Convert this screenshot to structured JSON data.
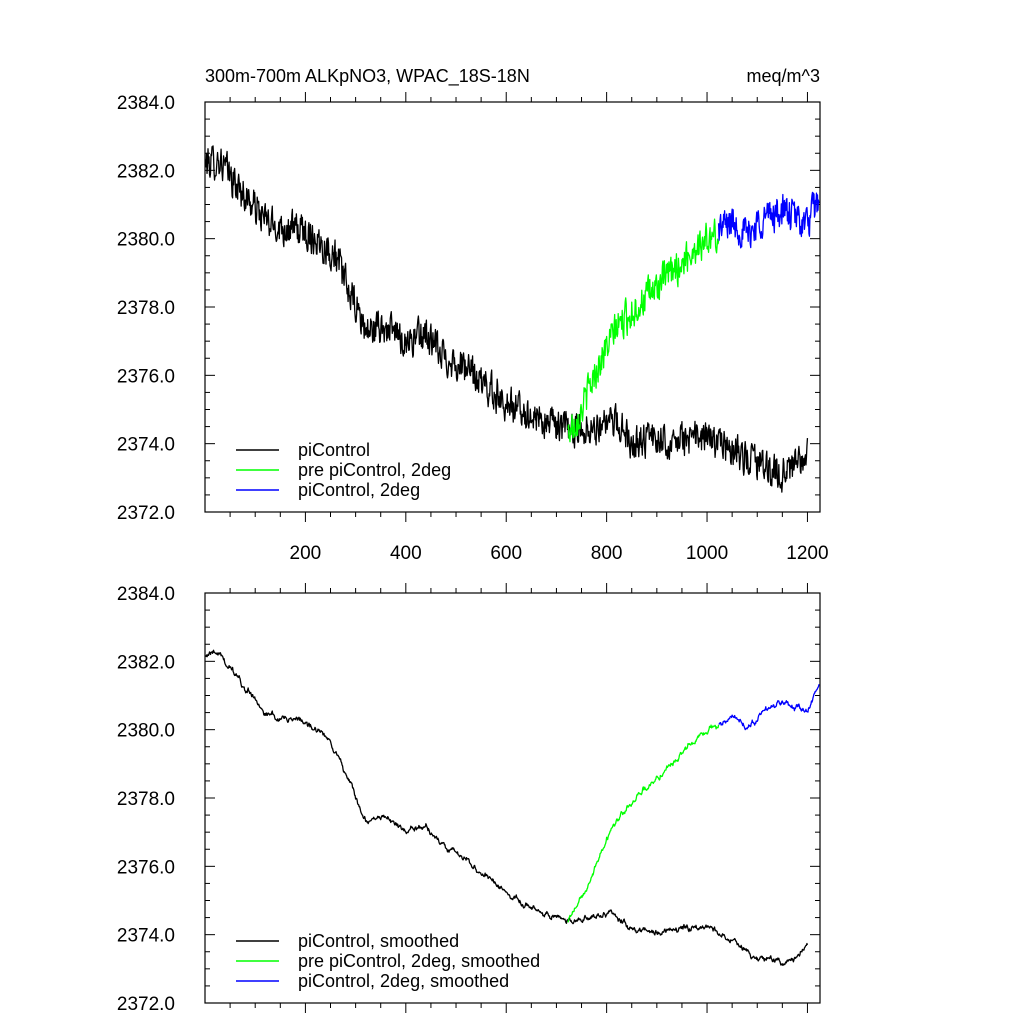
{
  "chart_data": [
    {
      "type": "line",
      "title": "300m-700m ALKpNO3, WPAC_18S-18N",
      "units": "meq/m^3",
      "xlim": [
        0,
        1225
      ],
      "ylim": [
        2372,
        2384
      ],
      "yticks": [
        "2372.0",
        "2374.0",
        "2376.0",
        "2378.0",
        "2380.0",
        "2382.0",
        "2384.0"
      ],
      "xticks": [
        "200",
        "400",
        "600",
        "800",
        "1000",
        "1200"
      ],
      "grid": false,
      "legend_position": "bottom-left",
      "series": [
        {
          "name": "piControl",
          "color": "#000000",
          "x_range": [
            1,
            1200
          ],
          "anchors": [
            [
              1,
              2382.2
            ],
            [
              30,
              2382.3
            ],
            [
              60,
              2381.6
            ],
            [
              100,
              2380.9
            ],
            [
              130,
              2380.4
            ],
            [
              170,
              2380.3
            ],
            [
              200,
              2380.2
            ],
            [
              230,
              2379.9
            ],
            [
              260,
              2379.5
            ],
            [
              280,
              2378.7
            ],
            [
              300,
              2378.0
            ],
            [
              320,
              2377.3
            ],
            [
              360,
              2377.4
            ],
            [
              400,
              2377.0
            ],
            [
              440,
              2377.2
            ],
            [
              470,
              2376.6
            ],
            [
              520,
              2376.2
            ],
            [
              550,
              2375.8
            ],
            [
              600,
              2375.2
            ],
            [
              650,
              2374.8
            ],
            [
              700,
              2374.5
            ],
            [
              730,
              2374.4
            ],
            [
              780,
              2374.5
            ],
            [
              820,
              2374.6
            ],
            [
              850,
              2374.1
            ],
            [
              900,
              2374.1
            ],
            [
              950,
              2374.1
            ],
            [
              1000,
              2374.2
            ],
            [
              1050,
              2373.8
            ],
            [
              1100,
              2373.4
            ],
            [
              1150,
              2373.1
            ],
            [
              1200,
              2373.6
            ]
          ],
          "noise": 0.45
        },
        {
          "name": "pre piControl, 2deg",
          "color": "#00ff00",
          "x_range": [
            723,
            1023
          ],
          "anchors": [
            [
              723,
              2374.3
            ],
            [
              750,
              2375.0
            ],
            [
              780,
              2376.2
            ],
            [
              820,
              2377.4
            ],
            [
              860,
              2378.0
            ],
            [
              900,
              2378.6
            ],
            [
              950,
              2379.3
            ],
            [
              980,
              2379.8
            ],
            [
              1023,
              2380.1
            ]
          ],
          "noise": 0.45
        },
        {
          "name": "piControl, 2deg",
          "color": "#0000ff",
          "x_range": [
            1023,
            1223
          ],
          "anchors": [
            [
              1023,
              2380.3
            ],
            [
              1050,
              2380.5
            ],
            [
              1080,
              2380.1
            ],
            [
              1110,
              2380.6
            ],
            [
              1150,
              2380.8
            ],
            [
              1180,
              2380.6
            ],
            [
              1200,
              2380.4
            ],
            [
              1223,
              2381.2
            ]
          ],
          "noise": 0.45
        }
      ]
    },
    {
      "type": "line",
      "title": "",
      "units": "",
      "xlim": [
        0,
        1225
      ],
      "ylim": [
        2372,
        2384
      ],
      "yticks": [
        "2372.0",
        "2374.0",
        "2376.0",
        "2378.0",
        "2380.0",
        "2382.0",
        "2384.0"
      ],
      "xticks": [],
      "grid": false,
      "legend_position": "bottom-left",
      "series": [
        {
          "name": "piControl, smoothed",
          "color": "#000000",
          "x_range": [
            1,
            1200
          ],
          "anchors": [
            [
              1,
              2382.2
            ],
            [
              30,
              2382.3
            ],
            [
              60,
              2381.6
            ],
            [
              100,
              2380.9
            ],
            [
              130,
              2380.4
            ],
            [
              170,
              2380.3
            ],
            [
              200,
              2380.2
            ],
            [
              230,
              2379.9
            ],
            [
              260,
              2379.5
            ],
            [
              280,
              2378.7
            ],
            [
              300,
              2378.0
            ],
            [
              320,
              2377.3
            ],
            [
              360,
              2377.4
            ],
            [
              400,
              2377.0
            ],
            [
              440,
              2377.2
            ],
            [
              470,
              2376.6
            ],
            [
              520,
              2376.2
            ],
            [
              550,
              2375.8
            ],
            [
              600,
              2375.2
            ],
            [
              650,
              2374.8
            ],
            [
              700,
              2374.5
            ],
            [
              730,
              2374.4
            ],
            [
              780,
              2374.5
            ],
            [
              820,
              2374.6
            ],
            [
              850,
              2374.1
            ],
            [
              900,
              2374.1
            ],
            [
              950,
              2374.1
            ],
            [
              1000,
              2374.2
            ],
            [
              1050,
              2373.8
            ],
            [
              1100,
              2373.4
            ],
            [
              1150,
              2373.1
            ],
            [
              1200,
              2373.6
            ]
          ],
          "noise": 0.14
        },
        {
          "name": "pre piControl, 2deg, smoothed",
          "color": "#00ff00",
          "x_range": [
            723,
            1023
          ],
          "anchors": [
            [
              723,
              2374.4
            ],
            [
              750,
              2375.0
            ],
            [
              780,
              2376.2
            ],
            [
              820,
              2377.4
            ],
            [
              860,
              2378.0
            ],
            [
              900,
              2378.6
            ],
            [
              950,
              2379.3
            ],
            [
              980,
              2379.8
            ],
            [
              1023,
              2380.1
            ]
          ],
          "noise": 0.14
        },
        {
          "name": "piControl, 2deg, smoothed",
          "color": "#0000ff",
          "x_range": [
            1023,
            1223
          ],
          "anchors": [
            [
              1023,
              2380.2
            ],
            [
              1050,
              2380.4
            ],
            [
              1080,
              2380.0
            ],
            [
              1110,
              2380.5
            ],
            [
              1150,
              2380.8
            ],
            [
              1180,
              2380.6
            ],
            [
              1200,
              2380.5
            ],
            [
              1223,
              2381.3
            ]
          ],
          "noise": 0.14
        }
      ]
    }
  ]
}
